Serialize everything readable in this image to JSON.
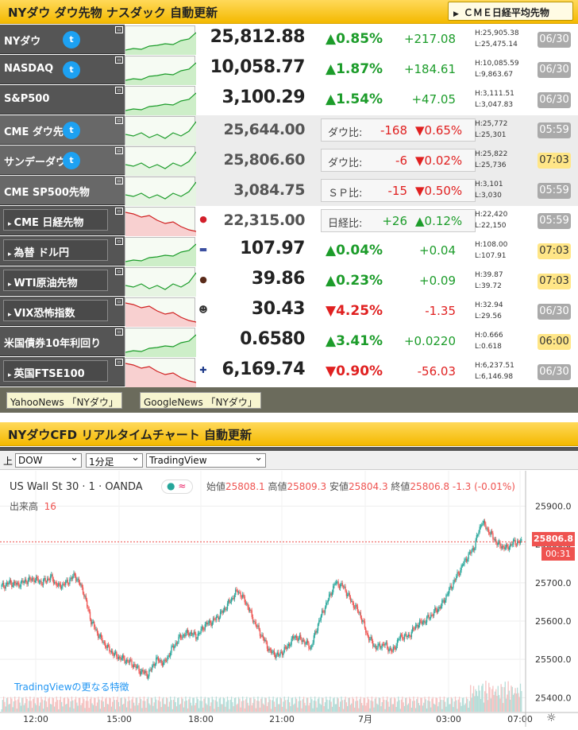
{
  "header1": {
    "title": "NYダウ ダウ先物 ナスダック 自動更新",
    "button": "ＣＭＥ日経平均先物"
  },
  "rows": [
    {
      "name": "NYダウ",
      "twitter": true,
      "price": "25,812.88",
      "pct": "▲0.85%",
      "chg": "+217.08",
      "dir": "up",
      "high": "H:25,905.38",
      "low": "L:25,475.14",
      "date": "06/30",
      "date_style": "g",
      "spark": "up",
      "style": "dark"
    },
    {
      "name": "NASDAQ",
      "twitter": true,
      "price": "10,058.77",
      "pct": "▲1.87%",
      "chg": "+184.61",
      "dir": "up",
      "high": "H:10,085.59",
      "low": "L:9,863.67",
      "date": "06/30",
      "date_style": "g",
      "spark": "up",
      "style": "dark"
    },
    {
      "name": "S&P500",
      "twitter": false,
      "price": "3,100.29",
      "pct": "▲1.54%",
      "chg": "+47.05",
      "dir": "up",
      "high": "H:3,111.51",
      "low": "L:3,047.83",
      "date": "06/30",
      "date_style": "g",
      "spark": "up",
      "style": "dark"
    },
    {
      "name": "CME ダウ先物",
      "twitter": true,
      "price": "25,644.00",
      "cmp_label": "ダウ比:",
      "cmp_val": "-168",
      "cmp_pct": "▼0.65%",
      "cmp_dir": "dn",
      "high": "H:25,772",
      "low": "L:25,301",
      "date": "05:59",
      "date_style": "g",
      "spark": "mixed",
      "style": "grey"
    },
    {
      "name": "サンデーダウ",
      "twitter": true,
      "price": "25,806.60",
      "cmp_label": "ダウ比:",
      "cmp_val": "-6",
      "cmp_pct": "▼0.02%",
      "cmp_dir": "dn",
      "high": "H:25,822",
      "low": "L:25,736",
      "date": "07:03",
      "date_style": "y",
      "spark": "mixed",
      "style": "grey"
    },
    {
      "name": "CME SP500先物",
      "twitter": false,
      "price": "3,084.75",
      "cmp_label": "ＳＰ比:",
      "cmp_val": "-15",
      "cmp_pct": "▼0.50%",
      "cmp_dir": "dn",
      "high": "H:3,101",
      "low": "L:3,030",
      "date": "05:59",
      "date_style": "g",
      "spark": "mixed",
      "style": "grey"
    },
    {
      "name": "CME 日経先物",
      "twitter": false,
      "flag": "●",
      "flag_color": "#d21f2a",
      "price": "22,315.00",
      "cmp_label": "日経比:",
      "cmp_val": "+26",
      "cmp_pct": "▲0.12%",
      "cmp_dir": "up",
      "high": "H:22,420",
      "low": "L:22,150",
      "date": "05:59",
      "date_style": "g",
      "spark": "down",
      "style": "boxed"
    },
    {
      "name": "為替 ドル円",
      "twitter": false,
      "flag": "▬",
      "flag_color": "#3b4fa0",
      "price": "107.97",
      "pct": "▲0.04%",
      "chg": "+0.04",
      "dir": "up",
      "high": "H:108.00",
      "low": "L:107.91",
      "date": "07:03",
      "date_style": "y",
      "spark": "up",
      "style": "boxed"
    },
    {
      "name": "WTI原油先物",
      "twitter": false,
      "flag": "●",
      "flag_color": "#5a2b1a",
      "price": "39.86",
      "pct": "▲0.23%",
      "chg": "+0.09",
      "dir": "up",
      "high": "H:39.87",
      "low": "L:39.72",
      "date": "07:03",
      "date_style": "y",
      "spark": "mixed",
      "style": "boxed"
    },
    {
      "name": "VIX恐怖指数",
      "twitter": false,
      "flag": "☻",
      "flag_color": "#333",
      "price": "30.43",
      "pct": "▼4.25%",
      "chg": "-1.35",
      "dir": "dn",
      "high": "H:32.94",
      "low": "L:29.56",
      "date": "06/30",
      "date_style": "g",
      "spark": "down",
      "style": "boxed"
    },
    {
      "name": "米国債券10年利回り",
      "twitter": false,
      "price": "0.6580",
      "pct": "▲3.41%",
      "chg": "+0.0220",
      "dir": "up",
      "high": "H:0.666",
      "low": "L:0.618",
      "date": "06:00",
      "date_style": "y",
      "spark": "up",
      "style": "dark"
    },
    {
      "name": "英国FTSE100",
      "twitter": false,
      "flag": "✚",
      "flag_color": "#1f3b8a",
      "price": "6,169.74",
      "pct": "▼0.90%",
      "chg": "-56.03",
      "dir": "dn",
      "high": "H:6,237.51",
      "low": "L:6,146.98",
      "date": "06/30",
      "date_style": "g",
      "spark": "down",
      "style": "boxed"
    }
  ],
  "news": [
    "YahooNews 「NYダウ」",
    "GoogleNews 「NYダウ」"
  ],
  "header2": {
    "title": "NYダウCFD リアルタイムチャート 自動更新"
  },
  "selectors": {
    "label": "上",
    "symbol": "DOW",
    "interval": "1分足",
    "provider": "TradingView"
  },
  "chart_header": {
    "symbol": "US Wall St 30 · 1 · OANDA",
    "open_label": "始値",
    "open": "25808.1",
    "high_label": "高値",
    "high": "25809.3",
    "low_label": "安値",
    "low": "25804.3",
    "close_label": "終値",
    "close": "25806.8",
    "change": "-1.3 (-0.01%)",
    "volume_label": "出来高",
    "volume": "16",
    "link": "TradingViewの更なる特徴",
    "price_tag": "25806.8",
    "timer_tag": "00:31"
  },
  "chart_data": {
    "type": "candlestick",
    "x_ticks": [
      "12:00",
      "15:00",
      "18:00",
      "21:00",
      "7月",
      "03:00",
      "07:00"
    ],
    "y_ticks": [
      "25900.0",
      "25800.0",
      "25700.0",
      "25600.0",
      "25500.0",
      "25400.0"
    ],
    "ylim": [
      25380,
      25930
    ],
    "close_path": [
      25690,
      25700,
      25695,
      25705,
      25710,
      25700,
      25715,
      25690,
      25700,
      25720,
      25680,
      25600,
      25560,
      25530,
      25510,
      25500,
      25490,
      25470,
      25460,
      25500,
      25490,
      25530,
      25560,
      25570,
      25560,
      25590,
      25600,
      25620,
      25650,
      25680,
      25650,
      25600,
      25560,
      25520,
      25510,
      25530,
      25560,
      25550,
      25530,
      25600,
      25650,
      25700,
      25690,
      25650,
      25620,
      25560,
      25530,
      25540,
      25520,
      25560,
      25560,
      25590,
      25600,
      25620,
      25640,
      25680,
      25720,
      25760,
      25790,
      25860,
      25830,
      25800,
      25790,
      25806
    ],
    "up_color": "#26a69a",
    "down_color": "#ef5350"
  }
}
